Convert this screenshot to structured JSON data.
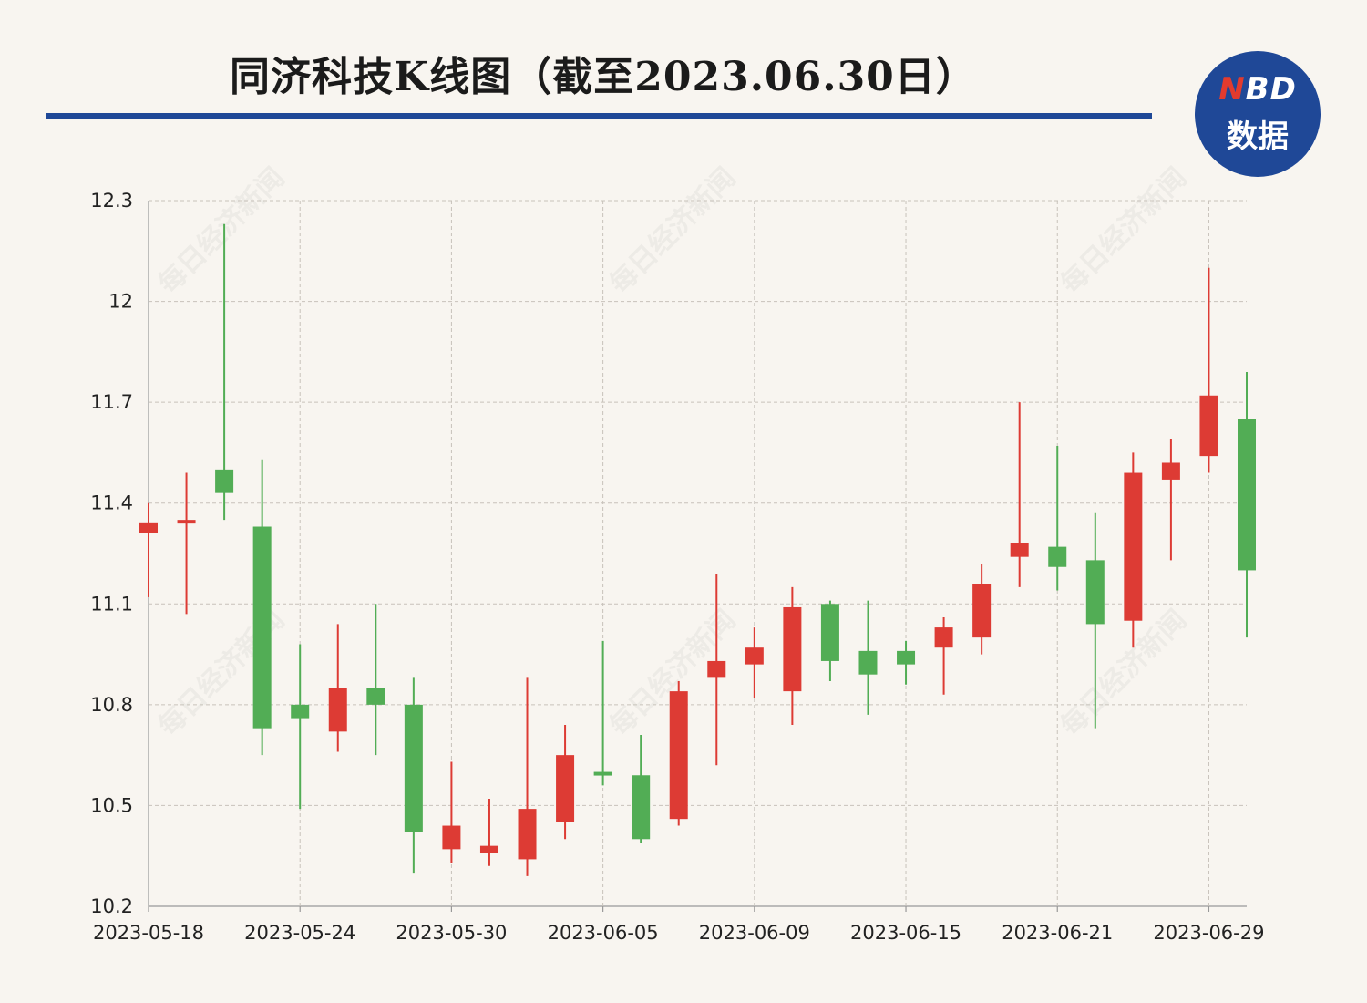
{
  "header": {
    "title": "同济科技K线图（截至2023.06.30日）",
    "badge_top": "NBD",
    "badge_sub": "数据",
    "watermark": "每日经济新闻"
  },
  "colors": {
    "up": "#dd3b34",
    "down": "#52ad55",
    "accent": "#1f4897",
    "grid": "#c7c2ba"
  },
  "chart_data": {
    "type": "candlestick",
    "title": "同济科技K线图（截至2023.06.30日）",
    "ylim": [
      10.2,
      12.3
    ],
    "yticks": [
      "12.3",
      "12",
      "11.7",
      "11.4",
      "11.1",
      "10.8",
      "10.5",
      "10.2"
    ],
    "xticks": [
      "2023-05-18",
      "2023-05-24",
      "2023-05-30",
      "2023-06-05",
      "2023-06-09",
      "2023-06-15",
      "2023-06-21",
      "2023-06-29"
    ],
    "xtick_index": [
      0,
      4,
      8,
      12,
      16,
      20,
      24,
      28
    ],
    "grid": true,
    "candles": [
      {
        "open": 11.31,
        "close": 11.34,
        "low": 11.12,
        "high": 11.4
      },
      {
        "open": 11.34,
        "close": 11.35,
        "low": 11.07,
        "high": 11.49
      },
      {
        "open": 11.5,
        "close": 11.43,
        "low": 11.35,
        "high": 12.23
      },
      {
        "open": 11.33,
        "close": 10.73,
        "low": 10.65,
        "high": 11.53
      },
      {
        "open": 10.8,
        "close": 10.76,
        "low": 10.49,
        "high": 10.98
      },
      {
        "open": 10.72,
        "close": 10.85,
        "low": 10.66,
        "high": 11.04
      },
      {
        "open": 10.85,
        "close": 10.8,
        "low": 10.65,
        "high": 11.1
      },
      {
        "open": 10.8,
        "close": 10.42,
        "low": 10.3,
        "high": 10.88
      },
      {
        "open": 10.37,
        "close": 10.44,
        "low": 10.33,
        "high": 10.63
      },
      {
        "open": 10.36,
        "close": 10.38,
        "low": 10.32,
        "high": 10.52
      },
      {
        "open": 10.34,
        "close": 10.49,
        "low": 10.29,
        "high": 10.88
      },
      {
        "open": 10.45,
        "close": 10.65,
        "low": 10.4,
        "high": 10.74
      },
      {
        "open": 10.6,
        "close": 10.59,
        "low": 10.56,
        "high": 10.99
      },
      {
        "open": 10.59,
        "close": 10.4,
        "low": 10.39,
        "high": 10.71
      },
      {
        "open": 10.46,
        "close": 10.84,
        "low": 10.44,
        "high": 10.87
      },
      {
        "open": 10.88,
        "close": 10.93,
        "low": 10.62,
        "high": 11.19
      },
      {
        "open": 10.92,
        "close": 10.97,
        "low": 10.82,
        "high": 11.03
      },
      {
        "open": 10.84,
        "close": 11.09,
        "low": 10.74,
        "high": 11.15
      },
      {
        "open": 11.1,
        "close": 10.93,
        "low": 10.87,
        "high": 11.11
      },
      {
        "open": 10.96,
        "close": 10.89,
        "low": 10.77,
        "high": 11.11
      },
      {
        "open": 10.96,
        "close": 10.92,
        "low": 10.86,
        "high": 10.99
      },
      {
        "open": 10.97,
        "close": 11.03,
        "low": 10.83,
        "high": 11.06
      },
      {
        "open": 11.0,
        "close": 11.16,
        "low": 10.95,
        "high": 11.22
      },
      {
        "open": 11.24,
        "close": 11.28,
        "low": 11.15,
        "high": 11.7
      },
      {
        "open": 11.27,
        "close": 11.21,
        "low": 11.14,
        "high": 11.57
      },
      {
        "open": 11.23,
        "close": 11.04,
        "low": 10.73,
        "high": 11.37
      },
      {
        "open": 11.05,
        "close": 11.49,
        "low": 10.97,
        "high": 11.55
      },
      {
        "open": 11.47,
        "close": 11.52,
        "low": 11.23,
        "high": 11.59
      },
      {
        "open": 11.54,
        "close": 11.72,
        "low": 11.49,
        "high": 12.1
      },
      {
        "open": 11.65,
        "close": 11.2,
        "low": 11.0,
        "high": 11.79
      }
    ]
  }
}
